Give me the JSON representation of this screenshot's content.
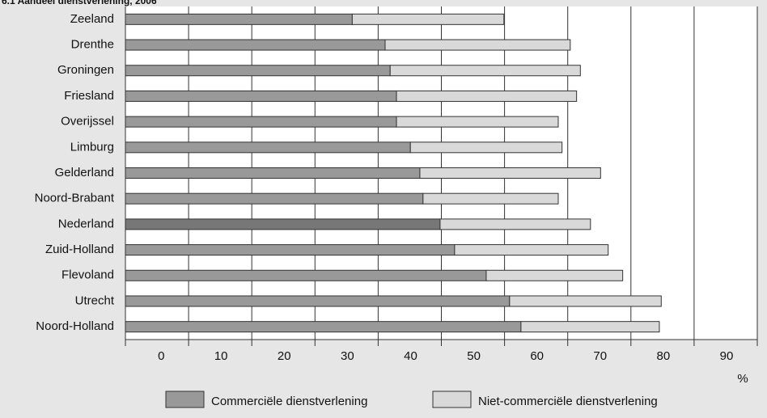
{
  "chart_data": {
    "type": "stacked-bar-horizontal",
    "title": "6.1 Aandeel dienstverlening, 2006",
    "categories": [
      "Zeeland",
      "Drenthe",
      "Groningen",
      "Friesland",
      "Overijssel",
      "Limburg",
      "Gelderland",
      "Noord-Brabant",
      "Nederland",
      "Zuid-Holland",
      "Flevoland",
      "Utrecht",
      "Noord-Holland"
    ],
    "series": [
      {
        "name": "Commerciële dienstverlening",
        "color": "#999999",
        "highlight_color": "#777777",
        "highlight_category": 8,
        "values": [
          35.9,
          41.1,
          41.9,
          42.9,
          42.9,
          45.1,
          46.6,
          47.1,
          49.8,
          52.1,
          57.1,
          60.8,
          62.6
        ]
      },
      {
        "name": "Niet-commerciële dienstverlening",
        "color": "#d9d9d9",
        "values": [
          24.0,
          29.3,
          30.1,
          28.5,
          25.6,
          24.0,
          28.6,
          21.4,
          23.8,
          24.3,
          21.6,
          24.0,
          21.9
        ]
      }
    ],
    "xlim": [
      0,
      100
    ],
    "xticks": [
      0,
      10,
      20,
      30,
      40,
      50,
      60,
      70,
      80,
      90,
      100
    ],
    "x_unit": "%",
    "grid": true
  }
}
